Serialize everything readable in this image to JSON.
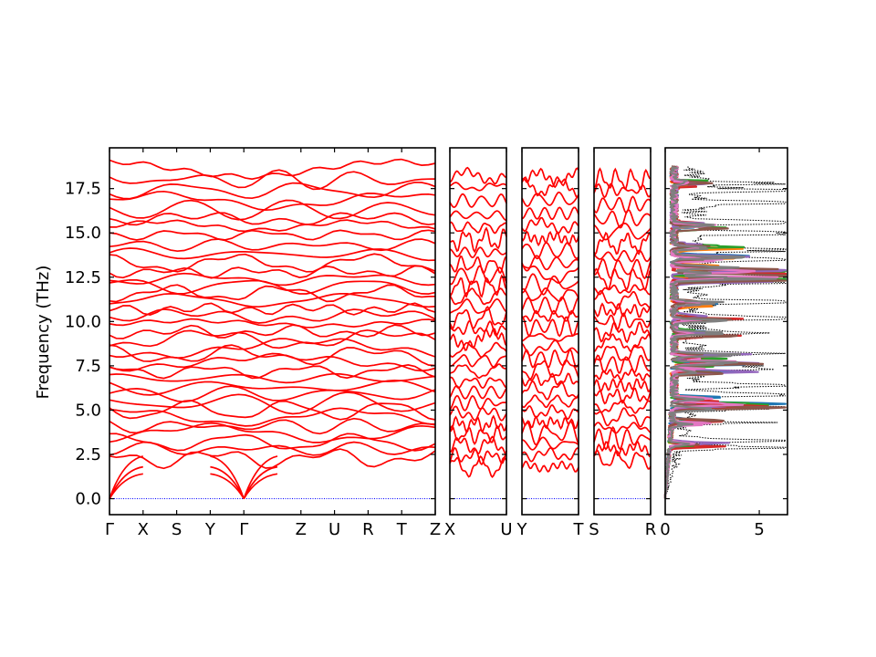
{
  "chart_data": {
    "type": "line",
    "title": "",
    "ylabel": "Frequency (THz)",
    "ylim": [
      -0.9,
      19.8
    ],
    "y_ticks": [
      "0.0",
      "2.5",
      "5.0",
      "7.5",
      "10.0",
      "12.5",
      "15.0",
      "17.5"
    ],
    "y_tick_values": [
      0.0,
      2.5,
      5.0,
      7.5,
      10.0,
      12.5,
      15.0,
      17.5
    ],
    "zero_line_color": "#0000ff",
    "band_color": "#ff0000",
    "panels": [
      {
        "name": "band-panel-1",
        "segments": [
          "Γ-X",
          "X-S",
          "S-Y",
          "Y-Γ",
          "Γ-Z",
          "Z-U",
          "U-R",
          "R-T",
          "T-Z"
        ],
        "x_tick_labels": [
          "Γ",
          "X",
          "S",
          "Y",
          "Γ",
          "Z",
          "U",
          "R",
          "T",
          "Z"
        ],
        "x_ticks": [
          0,
          1,
          2,
          3,
          4,
          5.7,
          6.7,
          7.7,
          8.7,
          9.7
        ],
        "acoustic_min_points": [
          0,
          4
        ],
        "approx_band_frequencies_thz": [
          2.3,
          2.8,
          3.2,
          3.7,
          4.1,
          4.6,
          5.0,
          5.4,
          5.9,
          6.3,
          6.8,
          7.2,
          7.7,
          8.1,
          8.5,
          9.0,
          9.4,
          9.9,
          10.3,
          10.7,
          11.2,
          11.6,
          12.0,
          12.4,
          12.8,
          13.3,
          13.8,
          14.3,
          14.9,
          15.4,
          15.8,
          16.3,
          16.8,
          17.4,
          18.0,
          18.6
        ]
      },
      {
        "name": "band-panel-2",
        "segments": [
          "X-U"
        ],
        "x_tick_labels": [
          "X",
          "U"
        ],
        "x_ticks": [
          0,
          1
        ],
        "approx_band_frequencies_thz": [
          1.8,
          2.4,
          3.0,
          3.6,
          4.2,
          4.8,
          5.4,
          6.0,
          6.6,
          7.2,
          7.8,
          8.4,
          9.0,
          9.6,
          10.2,
          10.8,
          11.4,
          12.0,
          12.6,
          13.2,
          13.9,
          14.6,
          15.3,
          16.0,
          16.8,
          17.6,
          18.2
        ]
      },
      {
        "name": "band-panel-3",
        "segments": [
          "Y-T"
        ],
        "x_tick_labels": [
          "Y",
          "T"
        ],
        "x_ticks": [
          0,
          1
        ],
        "approx_band_frequencies_thz": [
          1.8,
          2.5,
          3.1,
          3.7,
          4.3,
          4.9,
          5.5,
          6.1,
          6.7,
          7.3,
          7.9,
          8.5,
          9.1,
          9.7,
          10.3,
          10.9,
          11.5,
          12.1,
          12.7,
          13.3,
          14.0,
          14.7,
          15.4,
          16.1,
          16.9,
          17.6,
          18.1
        ]
      },
      {
        "name": "band-panel-4",
        "segments": [
          "S-R"
        ],
        "x_tick_labels": [
          "S",
          "R"
        ],
        "x_ticks": [
          0,
          1
        ],
        "approx_band_frequencies_thz": [
          2.2,
          2.8,
          3.4,
          4.0,
          4.6,
          5.2,
          5.8,
          6.4,
          7.0,
          7.6,
          8.2,
          8.8,
          9.4,
          10.0,
          10.6,
          11.2,
          11.8,
          12.4,
          13.0,
          13.7,
          14.4,
          15.1,
          15.8,
          16.6,
          17.4,
          18.0
        ]
      }
    ],
    "dos": {
      "xlim": [
        0,
        6.5
      ],
      "x_ticks": [
        0,
        5
      ],
      "x_tick_labels": [
        "0",
        "5"
      ],
      "total_style": "dotted",
      "total_color": "#000000",
      "series_colors": [
        "#1f77b4",
        "#ff7f0e",
        "#2ca02c",
        "#d62728",
        "#9467bd",
        "#8c564b",
        "#e377c2",
        "#7f7f7f"
      ],
      "total_peaks": [
        [
          2.9,
          6.2
        ],
        [
          3.3,
          6.3
        ],
        [
          4.3,
          3.8
        ],
        [
          5.1,
          6.4
        ],
        [
          5.9,
          6.1
        ],
        [
          6.4,
          6.2
        ],
        [
          7.4,
          5.2
        ],
        [
          8.2,
          4.5
        ],
        [
          9.4,
          4.2
        ],
        [
          10.2,
          5.0
        ],
        [
          11.1,
          5.4
        ],
        [
          12.2,
          6.3
        ],
        [
          12.6,
          6.1
        ],
        [
          13.5,
          5.8
        ],
        [
          14.0,
          6.2
        ],
        [
          15.0,
          6.4
        ],
        [
          15.6,
          6.1
        ],
        [
          16.7,
          5.8
        ],
        [
          17.4,
          6.4
        ],
        [
          17.8,
          5.9
        ]
      ],
      "partial_peaks": [
        [
          3.0,
          2.5
        ],
        [
          4.3,
          2.0
        ],
        [
          5.2,
          6.0
        ],
        [
          5.6,
          3.0
        ],
        [
          7.2,
          3.5
        ],
        [
          7.6,
          4.2
        ],
        [
          8.0,
          2.8
        ],
        [
          9.3,
          3.0
        ],
        [
          10.2,
          3.2
        ],
        [
          11.0,
          2.6
        ],
        [
          12.4,
          6.0
        ],
        [
          12.7,
          5.2
        ],
        [
          13.0,
          4.0
        ],
        [
          13.6,
          3.2
        ],
        [
          14.2,
          2.8
        ],
        [
          15.4,
          3.0
        ],
        [
          17.8,
          1.6
        ]
      ]
    }
  }
}
